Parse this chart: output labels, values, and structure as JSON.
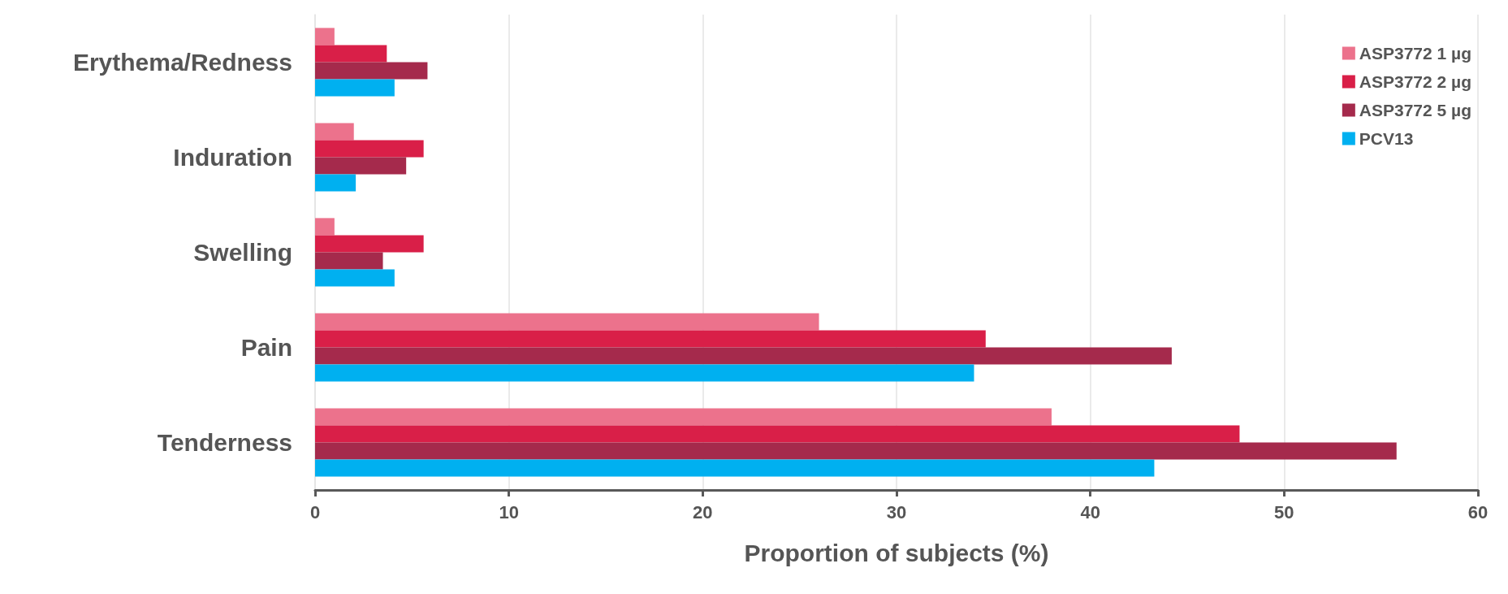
{
  "chart_data": {
    "type": "bar",
    "orientation": "horizontal",
    "xlabel": "Proportion of subjects (%)",
    "categories": [
      "Erythema/Redness",
      "Induration",
      "Swelling",
      "Pain",
      "Tenderness"
    ],
    "series": [
      {
        "name": "ASP3772 1 µg",
        "color": "#ec728c",
        "values": [
          1.0,
          2.0,
          1.0,
          26.0,
          38.0
        ]
      },
      {
        "name": "ASP3772 2 µg",
        "color": "#d91f48",
        "values": [
          3.7,
          5.6,
          5.6,
          34.6,
          47.7
        ]
      },
      {
        "name": "ASP3772 5 µg",
        "color": "#a52a4c",
        "values": [
          5.8,
          4.7,
          3.5,
          44.2,
          55.8
        ]
      },
      {
        "name": "PCV13",
        "color": "#00b0f0",
        "values": [
          4.1,
          2.1,
          4.1,
          34.0,
          43.3
        ]
      }
    ],
    "xlim": [
      0,
      60
    ],
    "xticks": [
      0,
      10,
      20,
      30,
      40,
      50,
      60
    ],
    "grid": "x",
    "legend": "top right"
  }
}
